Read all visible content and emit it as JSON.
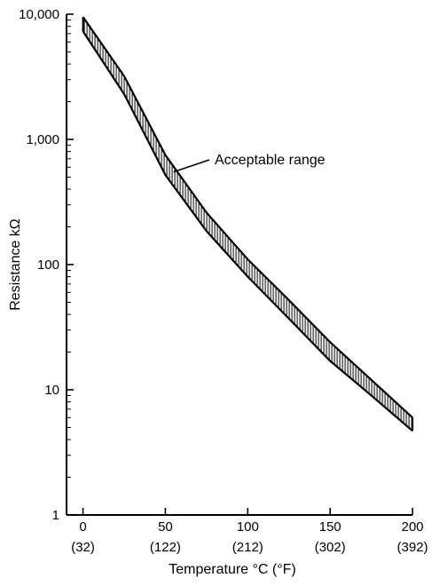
{
  "chart_data": {
    "type": "area",
    "title": "",
    "xlabel": "Temperature °C (°F)",
    "ylabel": "Resistance kΩ",
    "xlim": [
      -10,
      200
    ],
    "ylim": [
      1,
      10000
    ],
    "y_scale": "log",
    "x_ticks": [
      {
        "value": 0,
        "label": "0",
        "sublabel": "(32)"
      },
      {
        "value": 50,
        "label": "50",
        "sublabel": "(122)"
      },
      {
        "value": 100,
        "label": "100",
        "sublabel": "(212)"
      },
      {
        "value": 150,
        "label": "150",
        "sublabel": "(302)"
      },
      {
        "value": 200,
        "label": "200",
        "sublabel": "(392)"
      }
    ],
    "y_ticks": [
      {
        "value": 1,
        "label": "1"
      },
      {
        "value": 10,
        "label": "10"
      },
      {
        "value": 100,
        "label": "100"
      },
      {
        "value": 1000,
        "label": "1,000"
      },
      {
        "value": 10000,
        "label": "10,000"
      }
    ],
    "grid": false,
    "series": [
      {
        "x": [
          0,
          25,
          50,
          75,
          100,
          125,
          150,
          175,
          200
        ],
        "upper": [
          9500,
          3200,
          750,
          260,
          110,
          52,
          24,
          12,
          6
        ],
        "lower": [
          7300,
          2300,
          520,
          185,
          80,
          37,
          17,
          9,
          4.7
        ]
      }
    ],
    "annotation": {
      "text": "Acceptable range",
      "x": 55,
      "y": 550
    }
  }
}
